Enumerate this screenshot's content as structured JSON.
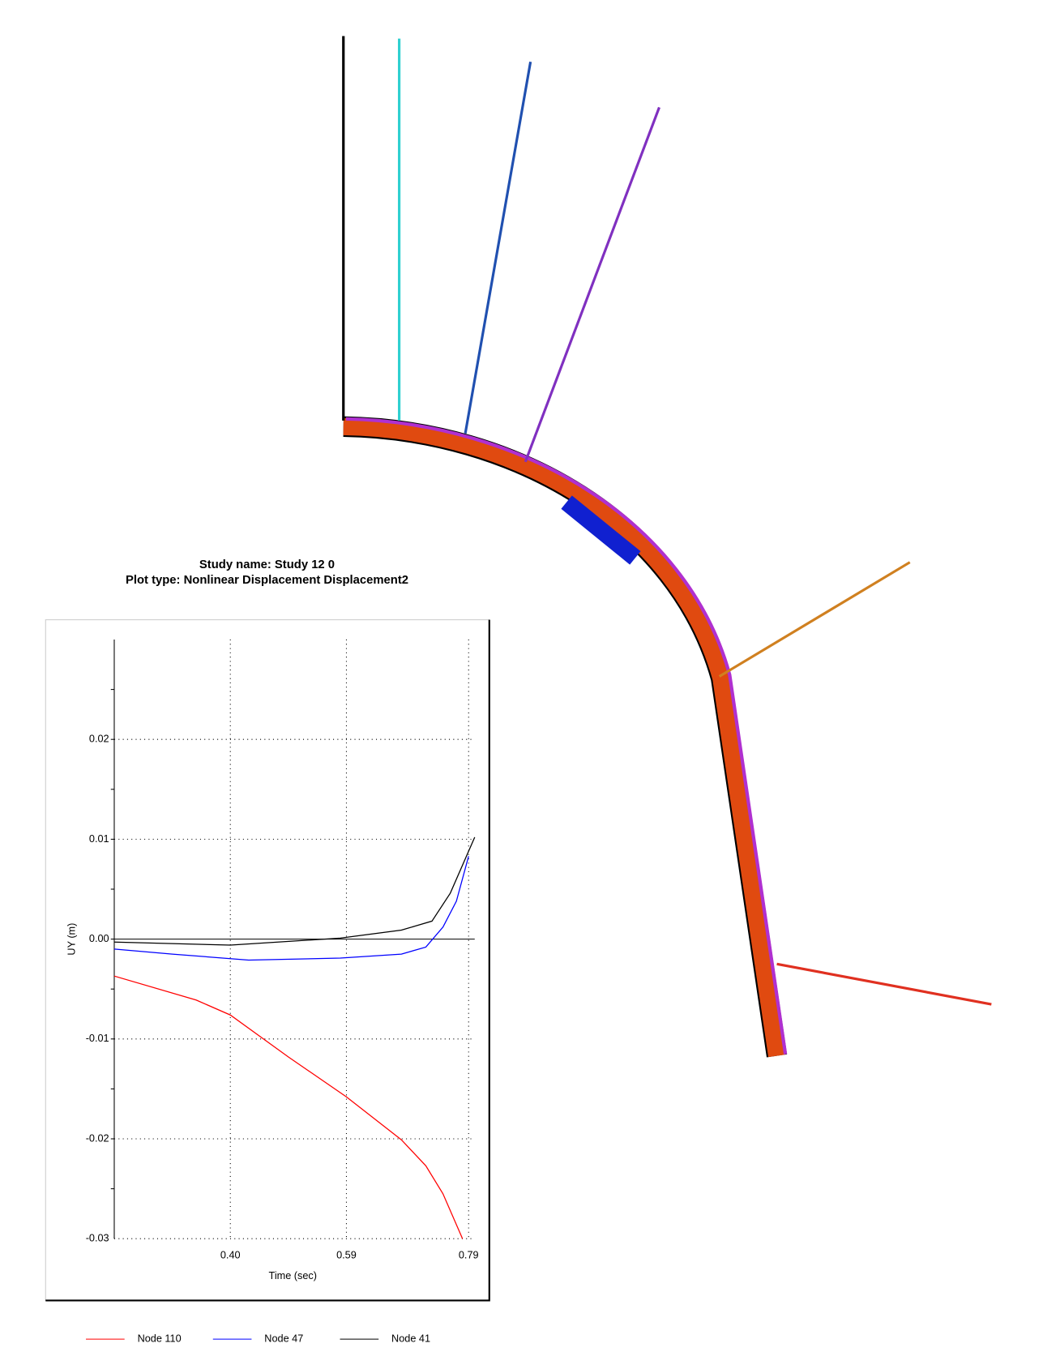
{
  "chart_data": {
    "type": "line",
    "title": "Study name: Study 12 0",
    "subtitle": "Plot type: Nonlinear Displacement Displacement2",
    "x_label": "Time (sec)",
    "y_label": "UY (m)",
    "xlim": [
      0.21,
      0.8
    ],
    "ylim": [
      -0.03,
      0.03
    ],
    "xticks": [
      {
        "value": 0.4,
        "label": "0.40"
      },
      {
        "value": 0.59,
        "label": "0.59"
      },
      {
        "value": 0.79,
        "label": "0.79"
      }
    ],
    "yticks": [
      0.02,
      0.01,
      {
        "value": 0.0,
        "label": "0.00"
      },
      -0.01,
      -0.02,
      -0.03
    ],
    "grid": true,
    "series": [
      {
        "name": "Node 110",
        "color": "#ff0000",
        "x": [
          0.21,
          0.344,
          0.4,
          0.495,
          0.59,
          0.68,
          0.72,
          0.748,
          0.78
        ],
        "values": [
          -0.0037,
          -0.0061,
          -0.0076,
          -0.0118,
          -0.0158,
          -0.0201,
          -0.0227,
          -0.0255,
          -0.03
        ]
      },
      {
        "name": "Node 47",
        "color": "#0000ff",
        "x": [
          0.21,
          0.305,
          0.43,
          0.58,
          0.68,
          0.72,
          0.748,
          0.77,
          0.79
        ],
        "values": [
          -0.001,
          -0.0015,
          -0.0021,
          -0.0019,
          -0.0015,
          -0.0008,
          0.0012,
          0.0038,
          0.0083
        ]
      },
      {
        "name": "Node 41",
        "color": "#000000",
        "x": [
          0.21,
          0.4,
          0.58,
          0.68,
          0.73,
          0.76,
          0.8
        ],
        "values": [
          -0.0003,
          -0.0006,
          0.0001,
          0.0009,
          0.0018,
          0.0046,
          0.0102
        ]
      }
    ]
  }
}
